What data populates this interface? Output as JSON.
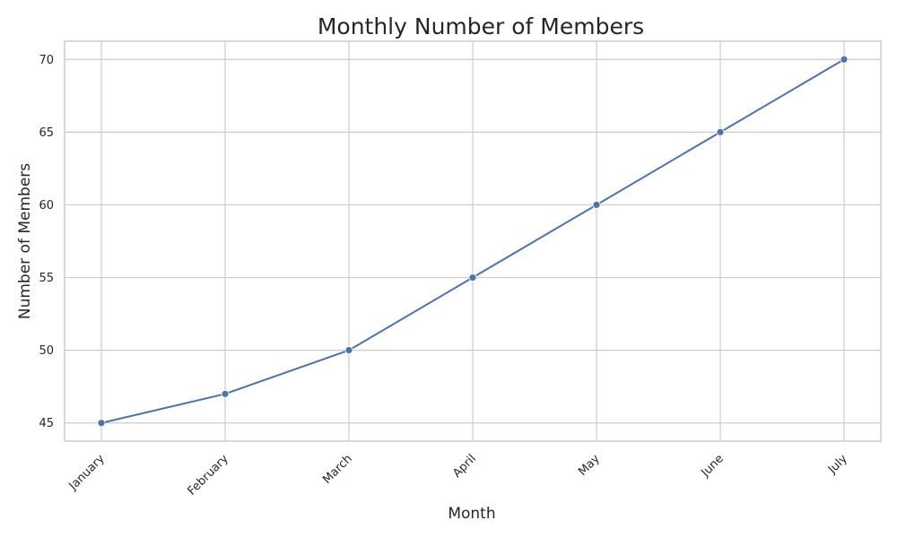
{
  "chart_data": {
    "type": "line",
    "title": "Monthly Number of Members",
    "xlabel": "Month",
    "ylabel": "Number of Members",
    "categories": [
      "January",
      "February",
      "March",
      "April",
      "May",
      "June",
      "July"
    ],
    "series": [
      {
        "values": [
          45,
          47,
          50,
          55,
          60,
          65,
          70
        ],
        "color": "#4c72b0",
        "marker": "circle"
      }
    ],
    "ylim": [
      43.75,
      71.25
    ],
    "yticks": [
      45,
      50,
      55,
      60,
      65,
      70
    ],
    "grid": true,
    "legend": "none",
    "x_tick_rotation": 45
  }
}
